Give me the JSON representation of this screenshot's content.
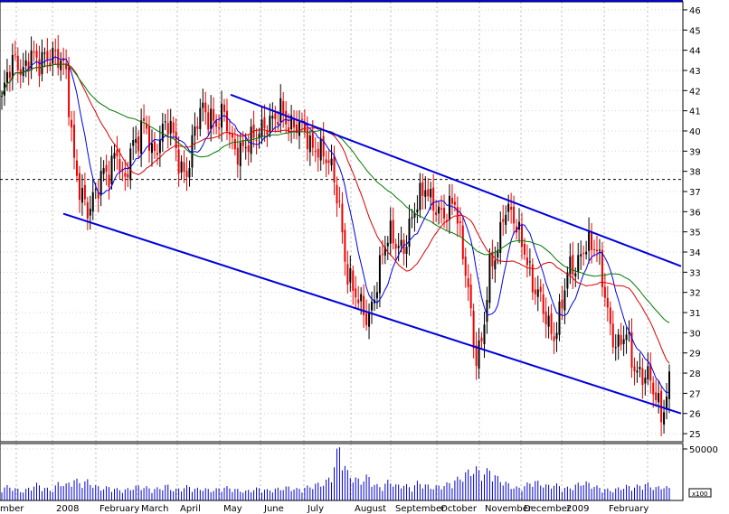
{
  "chart_data": [
    {
      "type": "candlestick",
      "title": "",
      "x_labels": [
        "mber",
        "2008",
        "February",
        "March",
        "April",
        "May",
        "June",
        "July",
        "August",
        "September",
        "October",
        "November",
        "December",
        "2009",
        "February"
      ],
      "y_ticks": [
        25,
        26,
        27,
        28,
        29,
        30,
        31,
        32,
        33,
        34,
        35,
        36,
        37,
        38,
        39,
        40,
        41,
        42,
        43,
        44,
        45,
        46
      ],
      "ylim": [
        24.6,
        46.4
      ],
      "grid": true,
      "reference_line": 37.6,
      "close_series": [
        41.5,
        42.8,
        43.6,
        43.2,
        43.7,
        43.0,
        43.9,
        44.0,
        43.3,
        42.6,
        39.0,
        37.0,
        35.6,
        36.8,
        38.4,
        37.8,
        38.7,
        37.4,
        39.5,
        39.4,
        40.2,
        39.0,
        39.8,
        40.2,
        39.5,
        38.3,
        38.1,
        40.0,
        41.2,
        41.0,
        40.2,
        40.6,
        39.6,
        39.2,
        39.0,
        39.4,
        40.4,
        40.5,
        40.2,
        41.0,
        40.6,
        40.3,
        39.8,
        39.3,
        39.5,
        38.6,
        37.8,
        36.6,
        33.3,
        31.8,
        31.2,
        31.0,
        32.0,
        33.5,
        35.0,
        34.8,
        34.0,
        35.1,
        36.8,
        37.6,
        36.1,
        35.6,
        36.2,
        37.0,
        34.1,
        32.0,
        29.0,
        29.8,
        32.9,
        34.0,
        36.6,
        35.8,
        34.6,
        34.1,
        32.6,
        31.5,
        30.2,
        30.1,
        31.6,
        32.9,
        33.1,
        34.6,
        34.4,
        33.7,
        32.1,
        30.1,
        29.1,
        29.8,
        28.6,
        28.1,
        27.6,
        26.8,
        26.2,
        27.6
      ],
      "moving_averages": [
        {
          "name": "fast",
          "color": "#0000ee"
        },
        {
          "name": "medium",
          "color": "#dd0000"
        },
        {
          "name": "slow",
          "color": "#007700"
        }
      ],
      "channel": {
        "upper": [
          {
            "x": "May",
            "y": 41.8
          },
          {
            "x": "February",
            "y": 33.3
          }
        ],
        "lower": [
          {
            "x": "2008",
            "y": 35.9
          },
          {
            "x": "February",
            "y": 26.0
          }
        ]
      }
    },
    {
      "type": "bar",
      "title": "",
      "y_ticks": [
        50000
      ],
      "unit_label": "x100",
      "volume_series": [
        12000,
        14000,
        11000,
        9000,
        13000,
        16000,
        12000,
        10000,
        18000,
        15000,
        21000,
        17000,
        19000,
        14000,
        12000,
        13000,
        11000,
        10000,
        12000,
        14000,
        13000,
        11000,
        12000,
        15000,
        10000,
        12000,
        14000,
        11000,
        12000,
        10000,
        11000,
        13000,
        12000,
        10000,
        9000,
        11000,
        12000,
        10000,
        11000,
        12000,
        13000,
        11000,
        12000,
        14000,
        16000,
        17000,
        25000,
        55000,
        28000,
        22000,
        19000,
        24000,
        15000,
        13000,
        20000,
        14000,
        16000,
        12000,
        18000,
        15000,
        13000,
        14000,
        16000,
        19000,
        23000,
        28000,
        31000,
        26000,
        30000,
        22000,
        18000,
        14000,
        12000,
        15000,
        19000,
        17000,
        14000,
        16000,
        13000,
        12000,
        15000,
        18000,
        16000,
        13000,
        11000,
        10000,
        12000,
        14000,
        13000,
        15000,
        16000,
        12000,
        14000,
        12000
      ]
    }
  ]
}
